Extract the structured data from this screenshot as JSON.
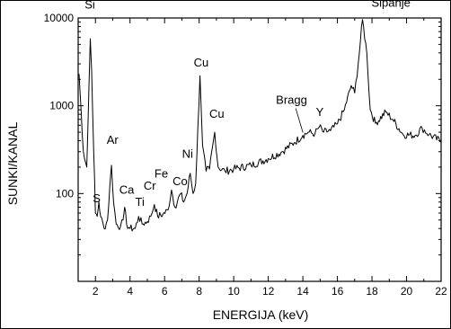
{
  "chart_data": {
    "type": "line",
    "xlabel": "ENERGIJA (keV)",
    "ylabel": "SUNKI/KANAL",
    "xlim": [
      1,
      22
    ],
    "ylim": [
      10,
      10000
    ],
    "yscale": "log",
    "x_ticks": [
      2,
      4,
      6,
      8,
      10,
      12,
      14,
      16,
      18,
      20,
      22
    ],
    "x_tick_labels": [
      "2",
      "4",
      "6",
      "8",
      "10",
      "12",
      "14",
      "16",
      "18",
      "20",
      "22"
    ],
    "y_ticks": [
      100,
      1000,
      10000
    ],
    "y_tick_labels": [
      "100",
      "1000",
      "10000"
    ],
    "grid": false,
    "series": [
      {
        "values": [
          [
            1.05,
            2300
          ],
          [
            1.3,
            300
          ],
          [
            1.5,
            200
          ],
          [
            1.62,
            1500
          ],
          [
            1.7,
            5800
          ],
          [
            1.78,
            2500
          ],
          [
            1.9,
            300
          ],
          [
            2.0,
            60
          ],
          [
            2.1,
            55
          ],
          [
            2.2,
            80
          ],
          [
            2.3,
            55
          ],
          [
            2.5,
            40
          ],
          [
            2.7,
            50
          ],
          [
            2.83,
            120
          ],
          [
            2.93,
            210
          ],
          [
            3.05,
            80
          ],
          [
            3.2,
            45
          ],
          [
            3.45,
            42
          ],
          [
            3.6,
            50
          ],
          [
            3.69,
            70
          ],
          [
            3.8,
            45
          ],
          [
            4.0,
            40
          ],
          [
            4.3,
            40
          ],
          [
            4.5,
            55
          ],
          [
            4.7,
            45
          ],
          [
            5.0,
            48
          ],
          [
            5.2,
            55
          ],
          [
            5.41,
            75
          ],
          [
            5.6,
            55
          ],
          [
            5.9,
            58
          ],
          [
            6.2,
            65
          ],
          [
            6.4,
            110
          ],
          [
            6.6,
            70
          ],
          [
            6.93,
            100
          ],
          [
            7.1,
            80
          ],
          [
            7.3,
            100
          ],
          [
            7.48,
            170
          ],
          [
            7.65,
            100
          ],
          [
            7.8,
            130
          ],
          [
            8.05,
            2200
          ],
          [
            8.2,
            350
          ],
          [
            8.4,
            180
          ],
          [
            8.6,
            190
          ],
          [
            8.9,
            500
          ],
          [
            9.1,
            200
          ],
          [
            9.5,
            180
          ],
          [
            10.0,
            190
          ],
          [
            11.0,
            210
          ],
          [
            12.0,
            250
          ],
          [
            12.8,
            300
          ],
          [
            13.5,
            380
          ],
          [
            14.0,
            460
          ],
          [
            14.3,
            500
          ],
          [
            14.7,
            480
          ],
          [
            14.96,
            580
          ],
          [
            15.2,
            500
          ],
          [
            15.6,
            520
          ],
          [
            16.0,
            620
          ],
          [
            16.4,
            900
          ],
          [
            16.8,
            1700
          ],
          [
            17.0,
            1400
          ],
          [
            17.2,
            3000
          ],
          [
            17.45,
            9600
          ],
          [
            17.7,
            4000
          ],
          [
            17.9,
            900
          ],
          [
            18.2,
            630
          ],
          [
            18.8,
            850
          ],
          [
            19.2,
            700
          ],
          [
            19.8,
            470
          ],
          [
            20.5,
            460
          ],
          [
            20.9,
            560
          ],
          [
            21.3,
            470
          ],
          [
            22.0,
            390
          ]
        ]
      }
    ],
    "annotations": [
      {
        "text": "Si",
        "x": 1.74,
        "y": 6000
      },
      {
        "text": "S",
        "x": 2.31,
        "y": 60
      },
      {
        "text": "Ar",
        "x": 2.96,
        "y": 230
      },
      {
        "text": "Ca",
        "x": 3.69,
        "y": 72
      },
      {
        "text": "Ti",
        "x": 4.51,
        "y": 60
      },
      {
        "text": "Cr",
        "x": 5.41,
        "y": 80
      },
      {
        "text": "Fe",
        "x": 6.4,
        "y": 115
      },
      {
        "text": "Co",
        "x": 6.93,
        "y": 103
      },
      {
        "text": "Ni",
        "x": 7.48,
        "y": 175
      },
      {
        "text": "Cu",
        "x": 8.05,
        "y": 2200
      },
      {
        "text": "Cu",
        "x": 8.9,
        "y": 500
      },
      {
        "text": "Bragg",
        "x": 13.9,
        "y": 450
      },
      {
        "text": "Y",
        "x": 14.96,
        "y": 580
      },
      {
        "text": "Sipanje",
        "x": 17.45,
        "y": 9600
      }
    ]
  }
}
